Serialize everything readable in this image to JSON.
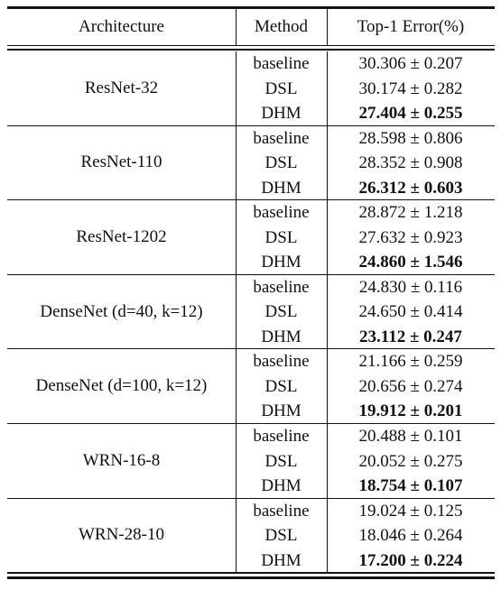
{
  "header": [
    "Architecture",
    "Method",
    "Top-1 Error(%)"
  ],
  "groups": [
    {
      "architecture": "ResNet-32",
      "rows": [
        [
          "baseline",
          "30.306 ± 0.207"
        ],
        [
          "DSL",
          "30.174 ± 0.282"
        ],
        [
          "DHM",
          "27.404 ± 0.255"
        ]
      ]
    },
    {
      "architecture": "ResNet-110",
      "rows": [
        [
          "baseline",
          "28.598 ± 0.806"
        ],
        [
          "DSL",
          "28.352 ± 0.908"
        ],
        [
          "DHM",
          "26.312 ± 0.603"
        ]
      ]
    },
    {
      "architecture": "ResNet-1202",
      "rows": [
        [
          "baseline",
          "28.872 ± 1.218"
        ],
        [
          "DSL",
          "27.632 ± 0.923"
        ],
        [
          "DHM",
          "24.860 ± 1.546"
        ]
      ]
    },
    {
      "architecture": "DenseNet (d=40, k=12)",
      "rows": [
        [
          "baseline",
          "24.830 ± 0.116"
        ],
        [
          "DSL",
          "24.650 ± 0.414"
        ],
        [
          "DHM",
          "23.112 ± 0.247"
        ]
      ]
    },
    {
      "architecture": "DenseNet (d=100, k=12)",
      "rows": [
        [
          "baseline",
          "21.166 ± 0.259"
        ],
        [
          "DSL",
          "20.656 ± 0.274"
        ],
        [
          "DHM",
          "19.912 ± 0.201"
        ]
      ]
    },
    {
      "architecture": "WRN-16-8",
      "rows": [
        [
          "baseline",
          "20.488 ± 0.101"
        ],
        [
          "DSL",
          "20.052 ± 0.275"
        ],
        [
          "DHM",
          "18.754 ± 0.107"
        ]
      ]
    },
    {
      "architecture": "WRN-28-10",
      "rows": [
        [
          "baseline",
          "19.024 ± 0.125"
        ],
        [
          "DSL",
          "18.046 ± 0.264"
        ],
        [
          "DHM",
          "17.200 ± 0.224"
        ]
      ]
    }
  ]
}
